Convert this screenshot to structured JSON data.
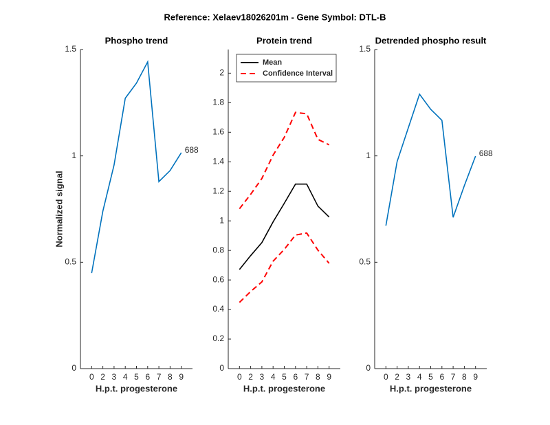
{
  "title": "Reference:  Xelaev18026201m - Gene Symbol:  DTL-B",
  "chart_data": [
    {
      "type": "line",
      "title": "Phospho trend",
      "y_label": "Normalized signal",
      "x_label": "H.p.t. progesterone",
      "categories": [
        "0",
        "2",
        "3",
        "4",
        "5",
        "6",
        "7",
        "8",
        "9"
      ],
      "series": [
        {
          "color": "#0072bd",
          "values": [
            0.449,
            0.74,
            0.957,
            1.271,
            1.342,
            1.442,
            0.879,
            0.931,
            1.015
          ]
        }
      ],
      "end_label": "688",
      "ylim": [
        0,
        1.5
      ],
      "yticks": [
        0,
        0.5,
        1,
        1.5
      ]
    },
    {
      "type": "line",
      "title": "Protein trend",
      "x_label": "H.p.t. progesterone",
      "categories": [
        "0",
        "2",
        "3",
        "4",
        "5",
        "6",
        "7",
        "8",
        "9"
      ],
      "series": [
        {
          "name": "Mean",
          "color": "#000000",
          "values": [
            0.671,
            0.765,
            0.853,
            0.993,
            1.119,
            1.249,
            1.249,
            1.1,
            1.026
          ]
        },
        {
          "name": "Confidence Interval",
          "color": "#ff0000",
          "dashed": true,
          "values": [
            1.082,
            1.18,
            1.287,
            1.445,
            1.566,
            1.734,
            1.725,
            1.552,
            1.515
          ]
        },
        {
          "color": "#ff0000",
          "dashed": true,
          "values": [
            0.448,
            0.522,
            0.587,
            0.727,
            0.807,
            0.904,
            0.918,
            0.802,
            0.713
          ]
        }
      ],
      "legend": "top-left",
      "ylim": [
        0,
        2.16
      ],
      "yticks": [
        0,
        0.2,
        0.4,
        0.6,
        0.8,
        1,
        1.2,
        1.4,
        1.6,
        1.8,
        2
      ]
    },
    {
      "type": "line",
      "title": "Detrended phospho result",
      "x_label": "H.p.t. progesterone",
      "categories": [
        "0",
        "2",
        "3",
        "4",
        "5",
        "6",
        "7",
        "8",
        "9"
      ],
      "series": [
        {
          "color": "#0072bd",
          "values": [
            0.672,
            0.973,
            1.132,
            1.29,
            1.219,
            1.167,
            0.711,
            0.86,
            0.999
          ]
        }
      ],
      "end_label": "688",
      "ylim": [
        0,
        1.5
      ],
      "yticks": [
        0,
        0.5,
        1,
        1.5
      ]
    }
  ]
}
